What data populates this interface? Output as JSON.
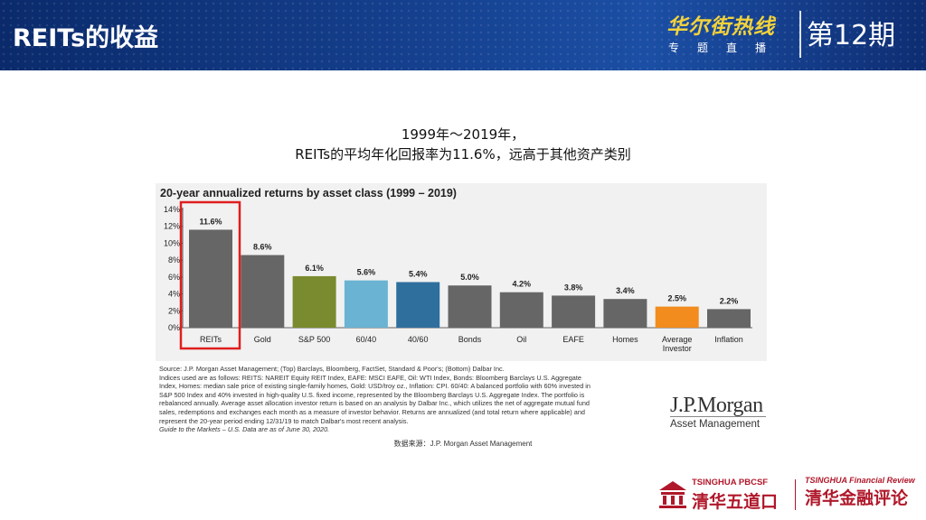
{
  "header": {
    "title": "REITs的收益",
    "brand": "华尔街热线",
    "brand_sub": "专题直播",
    "issue": "第12期"
  },
  "headline": {
    "line1": "1999年～2019年，",
    "line2": "REITs的平均年化回报率为11.6%，远高于其他资产类别"
  },
  "chart_data": {
    "type": "bar",
    "title": "20-year annualized returns by asset class (1999 – 2019)",
    "categories": [
      "REITs",
      "Gold",
      "S&P 500",
      "60/40",
      "40/60",
      "Bonds",
      "Oil",
      "EAFE",
      "Homes",
      "Average Investor",
      "Inflation"
    ],
    "category_lines": [
      [
        "REITs"
      ],
      [
        "Gold"
      ],
      [
        "S&P 500"
      ],
      [
        "60/40"
      ],
      [
        "40/60"
      ],
      [
        "Bonds"
      ],
      [
        "Oil"
      ],
      [
        "EAFE"
      ],
      [
        "Homes"
      ],
      [
        "Average",
        "Investor"
      ],
      [
        "Inflation"
      ]
    ],
    "values": [
      11.6,
      8.6,
      6.1,
      5.6,
      5.4,
      5.0,
      4.2,
      3.8,
      3.4,
      2.5,
      2.2
    ],
    "value_labels": [
      "11.6%",
      "8.6%",
      "6.1%",
      "5.6%",
      "5.4%",
      "5.0%",
      "4.2%",
      "3.8%",
      "3.4%",
      "2.5%",
      "2.2%"
    ],
    "colors": [
      "#666666",
      "#666666",
      "#7a8a2e",
      "#6ab3d3",
      "#2f6f9d",
      "#666666",
      "#666666",
      "#666666",
      "#666666",
      "#f28c1e",
      "#666666"
    ],
    "highlight_color": "#e01e1e",
    "highlight_index": 0,
    "yticks": [
      "0%",
      "2%",
      "4%",
      "6%",
      "8%",
      "10%",
      "12%",
      "14%"
    ],
    "ylim": [
      0,
      14
    ],
    "grid": false,
    "xlabel": "",
    "ylabel": ""
  },
  "notes": {
    "lines": [
      "Source: J.P. Morgan Asset Management; (Top) Barclays, Bloomberg, FactSet, Standard & Poor's; (Bottom) Dalbar Inc.",
      "Indices used are as follows: REITS: NAREIT Equity REIT Index, EAFE: MSCI EAFE, Oil: WTI Index, Bonds: Bloomberg Barclays U.S. Aggregate",
      "Index, Homes: median sale price of existing single-family homes, Gold: USD/troy oz., Inflation: CPI. 60/40: A balanced portfolio with 60% invested in",
      "S&P 500 Index and 40% invested in high-quality U.S. fixed income, represented by the Bloomberg Barclays U.S. Aggregate Index. The portfolio is",
      "rebalanced annually. Average asset allocation investor return is based on an analysis by Dalbar Inc., which utilizes the net of aggregate mutual fund",
      "sales, redemptions and exchanges each month as a measure of investor behavior. Returns are annualized (and total return where applicable) and",
      "represent the 20-year period ending 12/31/19 to match Dalbar's most recent analysis."
    ],
    "guide": "Guide to the Markets – U.S. Data are as of June 30, 2020."
  },
  "jpm_logo": {
    "name": "J.P.Morgan",
    "sub": "Asset Management"
  },
  "source_note": "数据来源：J.P. Morgan Asset Management",
  "footer": {
    "logo1_en": "TSINGHUA PBCSF",
    "logo1_cn": "清华五道口",
    "logo2_en": "TSINGHUA Financial Review",
    "logo2_cn": "清华金融评论"
  },
  "colors": {
    "header_bg": "#15408e",
    "brand_yellow": "#f3d33a",
    "footer_red": "#b0172a"
  }
}
